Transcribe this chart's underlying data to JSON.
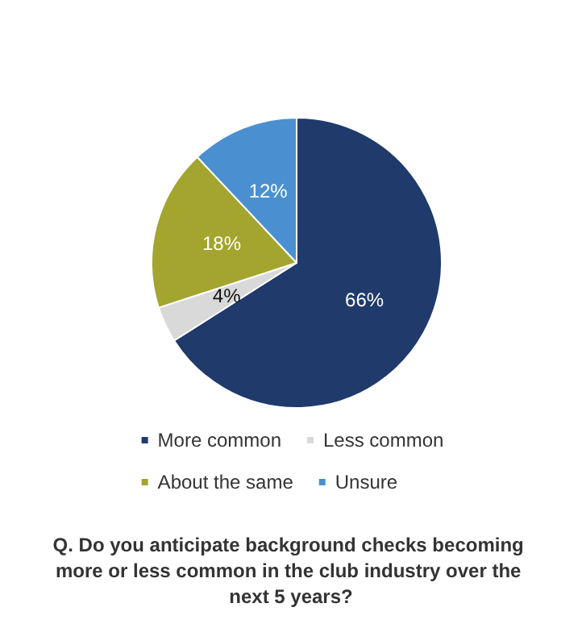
{
  "chart_data": {
    "type": "pie",
    "title": "Q. Do you anticipate background checks becoming more or less common in the club industry over the next 5 years?",
    "categories": [
      "More common",
      "Less common",
      "About the same",
      "Unsure"
    ],
    "values": [
      66,
      4,
      18,
      12
    ],
    "colors": [
      "#1f3a6b",
      "#d9d9d9",
      "#a3a52e",
      "#4a90d0"
    ],
    "value_labels": [
      "66%",
      "4%",
      "18%",
      "12%"
    ],
    "legend": "bottom"
  }
}
